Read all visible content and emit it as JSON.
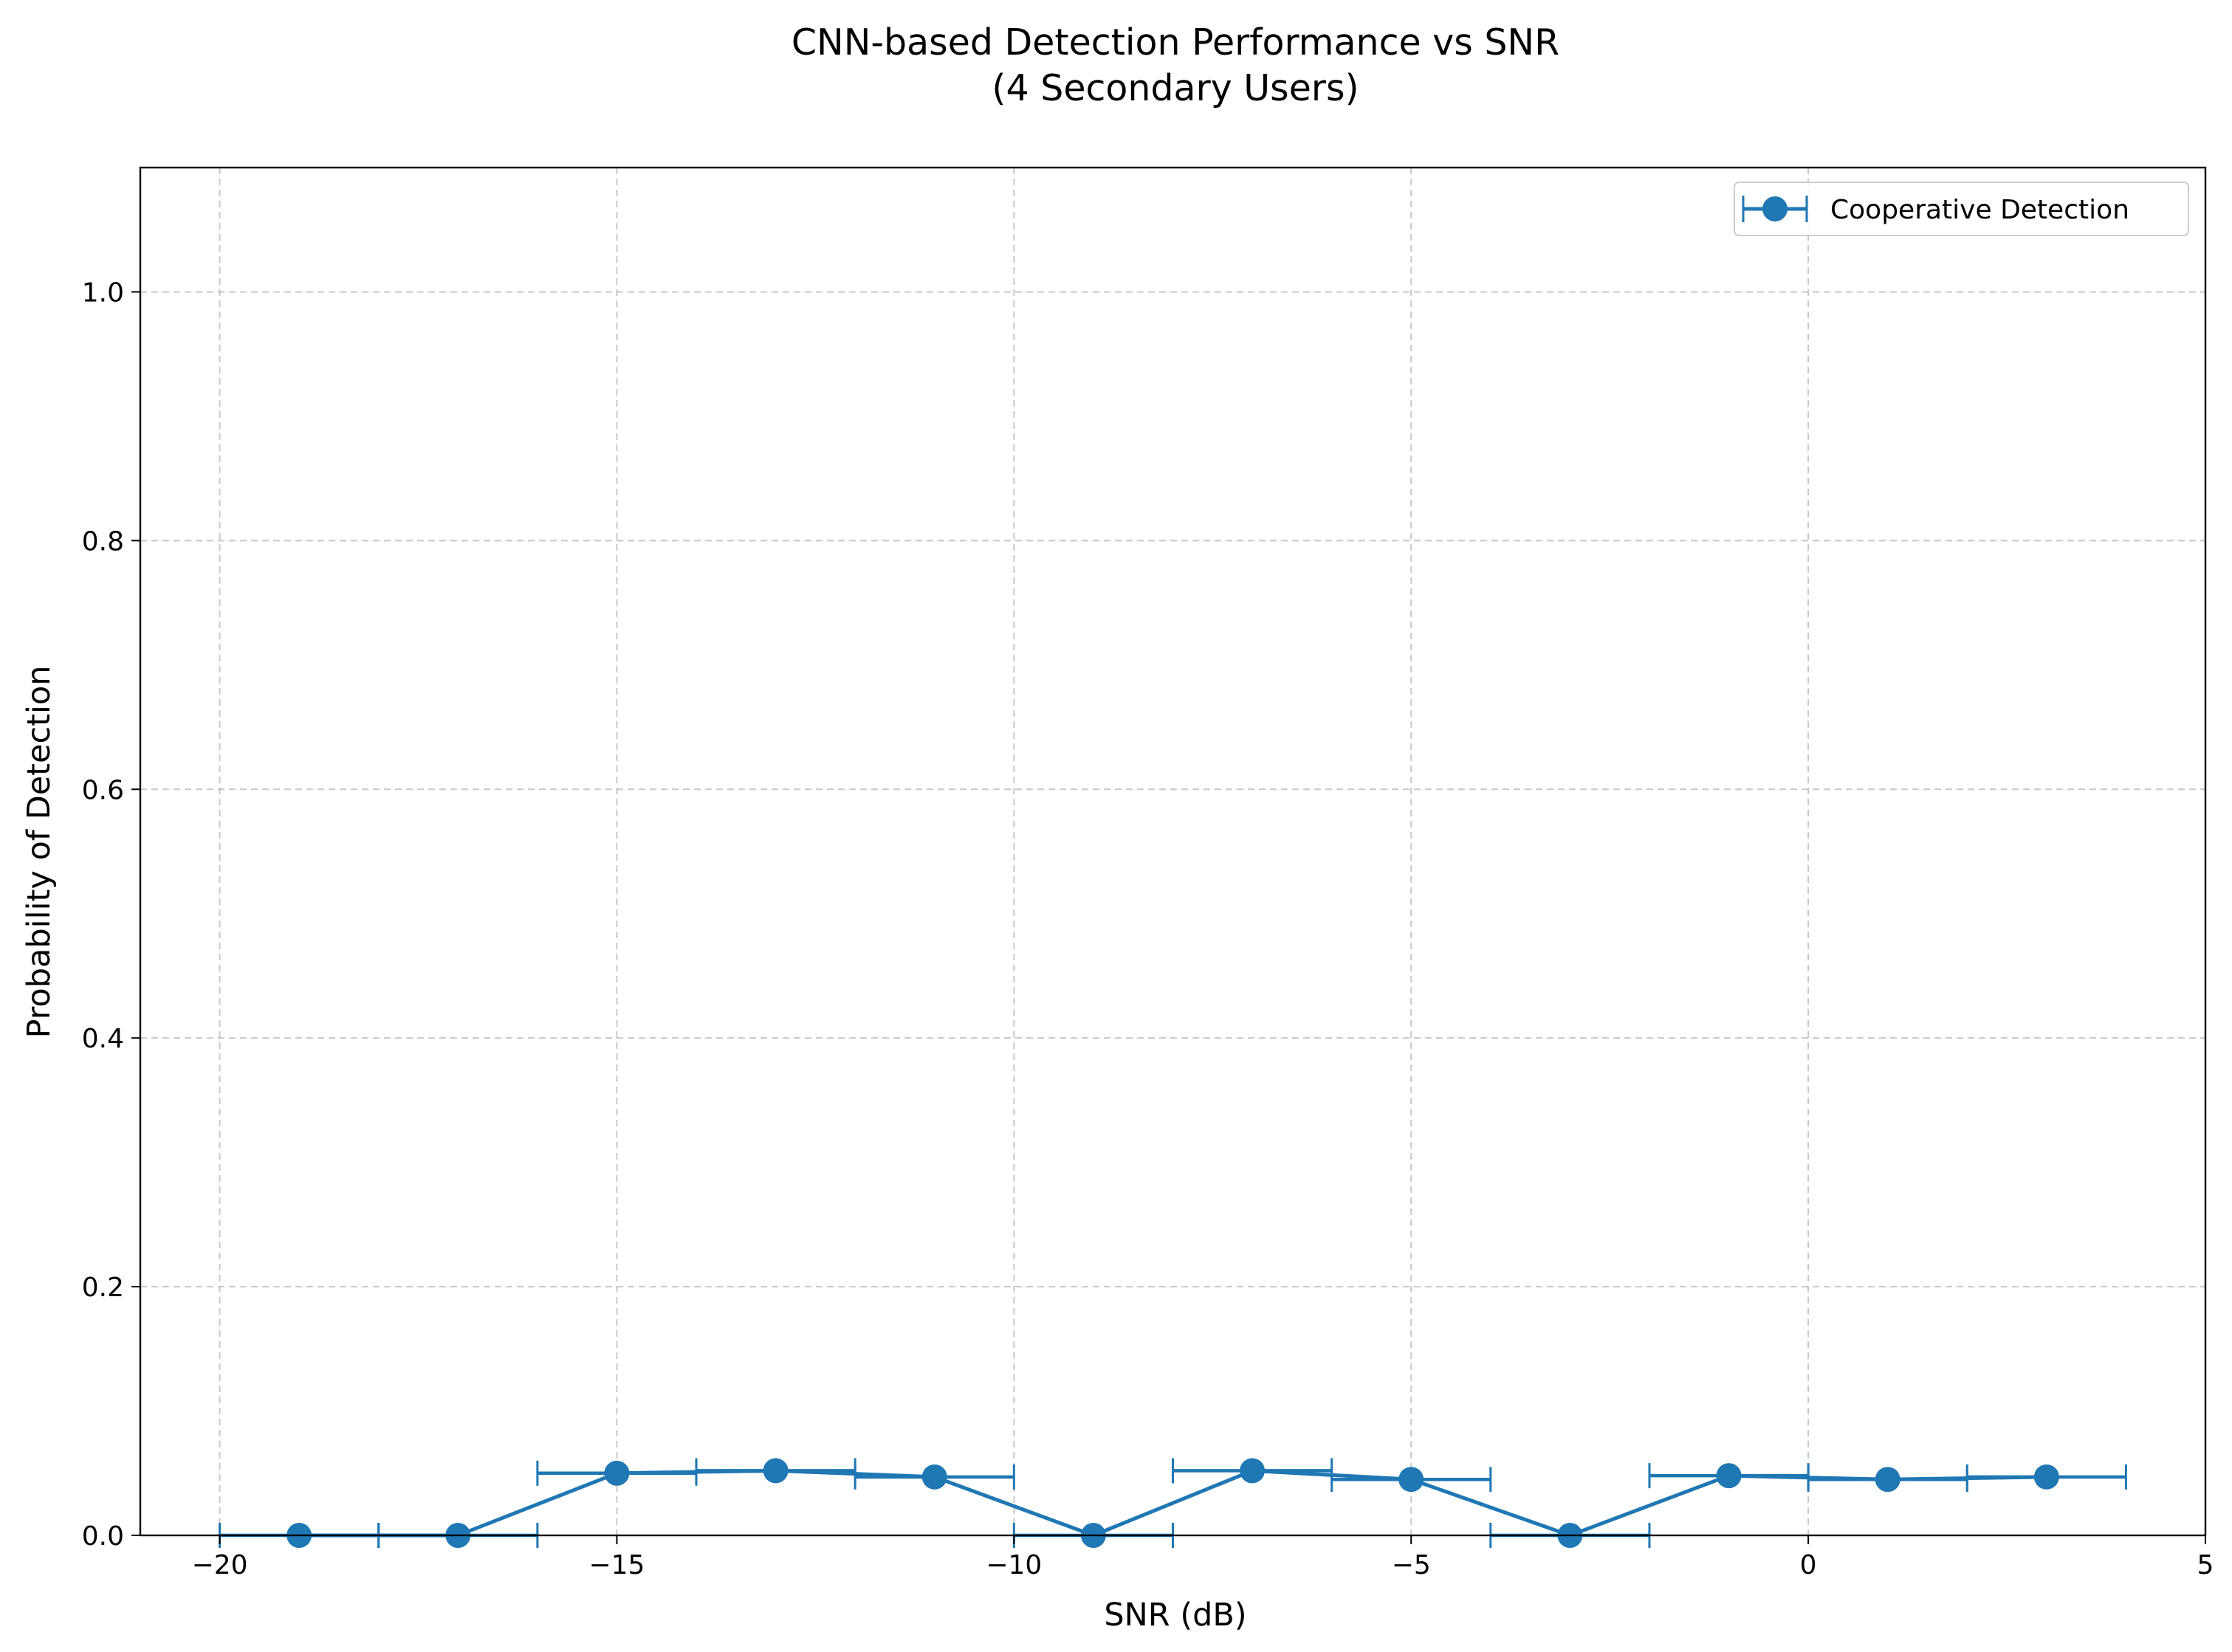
{
  "chart_data": {
    "type": "line",
    "title": "CNN-based Detection Performance vs SNR\n(4 Secondary Users)",
    "xlabel": "SNR (dB)",
    "ylabel": "Probability of Detection",
    "xlim": [
      -21,
      5
    ],
    "ylim": [
      0,
      1.1
    ],
    "xticks": [
      -20,
      -15,
      -10,
      -5,
      0,
      5
    ],
    "xtick_labels": [
      "−20",
      "−15",
      "−10",
      "−5",
      "0",
      "5"
    ],
    "yticks": [
      0.0,
      0.2,
      0.4,
      0.6,
      0.8,
      1.0
    ],
    "ytick_labels": [
      "0.0",
      "0.2",
      "0.4",
      "0.6",
      "0.8",
      "1.0"
    ],
    "grid": true,
    "legend_position": "top-right",
    "color": "#1f77b4",
    "series": [
      {
        "name": "Cooperative Detection",
        "x": [
          -19,
          -17,
          -15,
          -13,
          -11,
          -9,
          -7,
          -5,
          -3,
          -1,
          1,
          3
        ],
        "y": [
          0.0,
          0.0,
          0.05,
          0.052,
          0.047,
          0.0,
          0.052,
          0.045,
          0.0,
          0.048,
          0.045,
          0.047
        ],
        "xerr": [
          1,
          1,
          1,
          1,
          1,
          1,
          1,
          1,
          1,
          1,
          1,
          1
        ]
      }
    ]
  }
}
